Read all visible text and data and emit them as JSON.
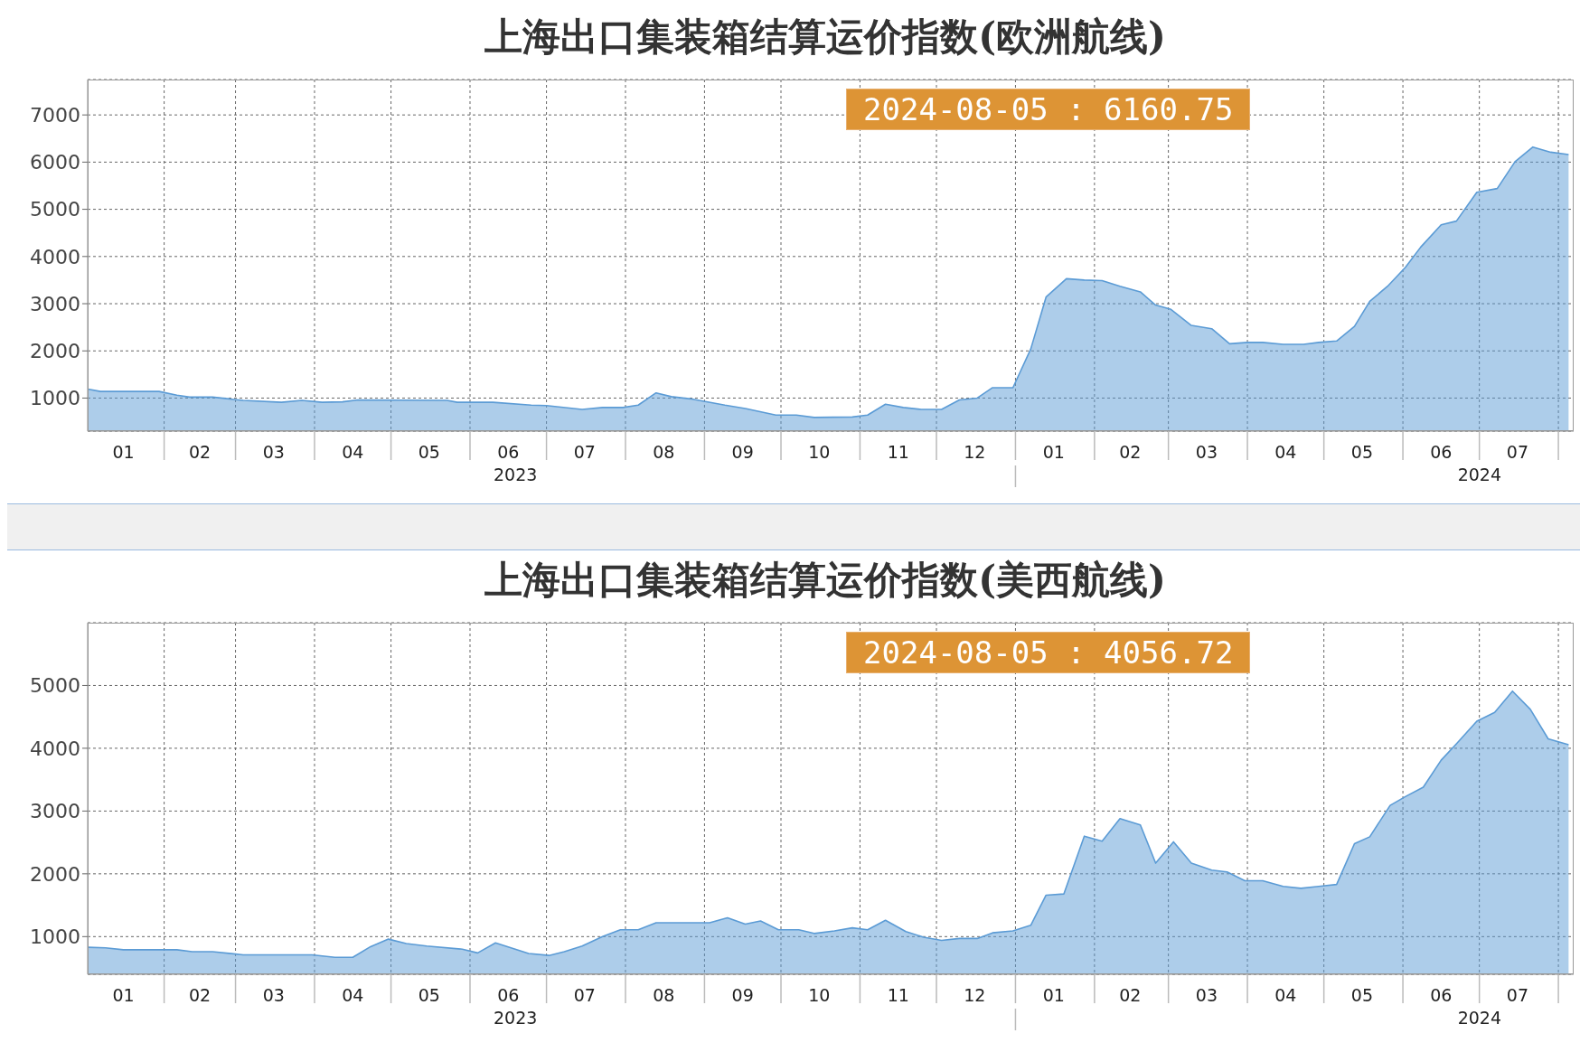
{
  "chart_data": [
    {
      "type": "area",
      "title": "上海出口集装箱结算运价指数(欧洲航线)",
      "color": "#5b9bd5",
      "grid": true,
      "xlim": [
        "2023-01-02",
        "2024-08-07"
      ],
      "ylim": [
        300,
        7750
      ],
      "yticks": [
        1000,
        2000,
        3000,
        4000,
        5000,
        6000,
        7000
      ],
      "xticks": [
        {
          "value": "2023-01-16",
          "label": "01"
        },
        {
          "value": "2023-02-01",
          "label": null
        },
        {
          "value": "2023-02-15",
          "label": "02"
        },
        {
          "value": "2023-03-01",
          "label": null
        },
        {
          "value": "2023-03-16",
          "label": "03"
        },
        {
          "value": "2023-04-01",
          "label": null
        },
        {
          "value": "2023-04-16",
          "label": "04"
        },
        {
          "value": "2023-05-01",
          "label": null
        },
        {
          "value": "2023-05-16",
          "label": "05"
        },
        {
          "value": "2023-06-01",
          "label": null
        },
        {
          "value": "2023-06-16",
          "label": "06"
        },
        {
          "value": "2023-07-01",
          "label": null
        },
        {
          "value": "2023-07-16",
          "label": "07"
        },
        {
          "value": "2023-08-01",
          "label": null
        },
        {
          "value": "2023-08-16",
          "label": "08"
        },
        {
          "value": "2023-09-01",
          "label": null
        },
        {
          "value": "2023-09-16",
          "label": "09"
        },
        {
          "value": "2023-10-01",
          "label": null
        },
        {
          "value": "2023-10-16",
          "label": "10"
        },
        {
          "value": "2023-11-01",
          "label": null
        },
        {
          "value": "2023-11-16",
          "label": "11"
        },
        {
          "value": "2023-12-01",
          "label": null
        },
        {
          "value": "2023-12-16",
          "label": "12"
        },
        {
          "value": "2024-01-01",
          "label": null
        },
        {
          "value": "2024-01-16",
          "label": "01"
        },
        {
          "value": "2024-02-01",
          "label": null
        },
        {
          "value": "2024-02-15",
          "label": "02"
        },
        {
          "value": "2024-03-01",
          "label": null
        },
        {
          "value": "2024-03-16",
          "label": "03"
        },
        {
          "value": "2024-04-01",
          "label": null
        },
        {
          "value": "2024-04-16",
          "label": "04"
        },
        {
          "value": "2024-05-01",
          "label": null
        },
        {
          "value": "2024-05-16",
          "label": "05"
        },
        {
          "value": "2024-06-01",
          "label": null
        },
        {
          "value": "2024-06-16",
          "label": "06"
        },
        {
          "value": "2024-07-01",
          "label": null
        },
        {
          "value": "2024-07-16",
          "label": "07"
        },
        {
          "value": "2024-08-01",
          "label": null
        }
      ],
      "annotations": [
        "2024-08-05 : 6160.75",
        "2023",
        "2024"
      ],
      "x": [
        "2023-01-02",
        "2023-01-07",
        "2023-01-30",
        "2023-02-06",
        "2023-02-11",
        "2023-02-20",
        "2023-03-04",
        "2023-03-19",
        "2023-03-27",
        "2023-04-04",
        "2023-04-12",
        "2023-04-18",
        "2023-05-23",
        "2023-05-27",
        "2023-06-10",
        "2023-06-25",
        "2023-07-01",
        "2023-07-15",
        "2023-07-23",
        "2023-07-31",
        "2023-08-06",
        "2023-08-13",
        "2023-08-19",
        "2023-08-27",
        "2023-09-09",
        "2023-09-17",
        "2023-09-29",
        "2023-10-07",
        "2023-10-14",
        "2023-10-29",
        "2023-11-04",
        "2023-11-11",
        "2023-11-18",
        "2023-11-25",
        "2023-12-03",
        "2023-12-10",
        "2023-12-17",
        "2023-12-23",
        "2023-12-31",
        "2024-01-07",
        "2024-01-13",
        "2024-01-21",
        "2024-01-28",
        "2024-02-04",
        "2024-02-11",
        "2024-02-19",
        "2024-02-25",
        "2024-03-02",
        "2024-03-10",
        "2024-03-18",
        "2024-03-25",
        "2024-04-01",
        "2024-04-07",
        "2024-04-15",
        "2024-04-23",
        "2024-04-29",
        "2024-05-06",
        "2024-05-13",
        "2024-05-19",
        "2024-05-26",
        "2024-06-02",
        "2024-06-08",
        "2024-06-16",
        "2024-06-22",
        "2024-06-30",
        "2024-07-08",
        "2024-07-15",
        "2024-07-22",
        "2024-07-29",
        "2024-08-05"
      ],
      "values": [
        1190,
        1140,
        1140,
        1060,
        1020,
        1020,
        950,
        910,
        950,
        910,
        920,
        960,
        950,
        910,
        910,
        850,
        840,
        760,
        800,
        800,
        850,
        1110,
        1030,
        980,
        850,
        780,
        640,
        640,
        590,
        600,
        640,
        870,
        800,
        760,
        760,
        960,
        1000,
        1220,
        1220,
        2040,
        3140,
        3530,
        3500,
        3490,
        3370,
        3250,
        2970,
        2880,
        2540,
        2470,
        2150,
        2180,
        2180,
        2140,
        2140,
        2180,
        2210,
        2520,
        3050,
        3370,
        3770,
        4200,
        4670,
        4750,
        5360,
        5440,
        6010,
        6320,
        6210,
        6160.75
      ]
    },
    {
      "type": "area",
      "title": "上海出口集装箱结算运价指数(美西航线)",
      "color": "#5b9bd5",
      "grid": true,
      "xlim": [
        "2023-01-02",
        "2024-08-07"
      ],
      "ylim": [
        400,
        6000
      ],
      "yticks": [
        1000,
        2000,
        3000,
        4000,
        5000
      ],
      "xticks": [
        {
          "value": "2023-01-16",
          "label": "01"
        },
        {
          "value": "2023-02-01",
          "label": null
        },
        {
          "value": "2023-02-15",
          "label": "02"
        },
        {
          "value": "2023-03-01",
          "label": null
        },
        {
          "value": "2023-03-16",
          "label": "03"
        },
        {
          "value": "2023-04-01",
          "label": null
        },
        {
          "value": "2023-04-16",
          "label": "04"
        },
        {
          "value": "2023-05-01",
          "label": null
        },
        {
          "value": "2023-05-16",
          "label": "05"
        },
        {
          "value": "2023-06-01",
          "label": null
        },
        {
          "value": "2023-06-16",
          "label": "06"
        },
        {
          "value": "2023-07-01",
          "label": null
        },
        {
          "value": "2023-07-16",
          "label": "07"
        },
        {
          "value": "2023-08-01",
          "label": null
        },
        {
          "value": "2023-08-16",
          "label": "08"
        },
        {
          "value": "2023-09-01",
          "label": null
        },
        {
          "value": "2023-09-16",
          "label": "09"
        },
        {
          "value": "2023-10-01",
          "label": null
        },
        {
          "value": "2023-10-16",
          "label": "10"
        },
        {
          "value": "2023-11-01",
          "label": null
        },
        {
          "value": "2023-11-16",
          "label": "11"
        },
        {
          "value": "2023-12-01",
          "label": null
        },
        {
          "value": "2023-12-16",
          "label": "12"
        },
        {
          "value": "2024-01-01",
          "label": null
        },
        {
          "value": "2024-01-16",
          "label": "01"
        },
        {
          "value": "2024-02-01",
          "label": null
        },
        {
          "value": "2024-02-15",
          "label": "02"
        },
        {
          "value": "2024-03-01",
          "label": null
        },
        {
          "value": "2024-03-16",
          "label": "03"
        },
        {
          "value": "2024-04-01",
          "label": null
        },
        {
          "value": "2024-04-16",
          "label": "04"
        },
        {
          "value": "2024-05-01",
          "label": null
        },
        {
          "value": "2024-05-16",
          "label": "05"
        },
        {
          "value": "2024-06-01",
          "label": null
        },
        {
          "value": "2024-06-16",
          "label": "06"
        },
        {
          "value": "2024-07-01",
          "label": null
        },
        {
          "value": "2024-07-16",
          "label": "07"
        },
        {
          "value": "2024-08-01",
          "label": null
        }
      ],
      "annotations": [
        "2024-08-05 : 4056.72",
        "2023",
        "2024"
      ],
      "x": [
        "2023-01-02",
        "2023-01-09",
        "2023-01-16",
        "2023-02-06",
        "2023-02-12",
        "2023-02-20",
        "2023-03-04",
        "2023-03-31",
        "2023-04-09",
        "2023-04-16",
        "2023-04-23",
        "2023-04-30",
        "2023-05-07",
        "2023-05-15",
        "2023-05-29",
        "2023-06-04",
        "2023-06-11",
        "2023-06-24",
        "2023-07-02",
        "2023-07-08",
        "2023-07-15",
        "2023-07-23",
        "2023-07-30",
        "2023-08-06",
        "2023-08-13",
        "2023-09-03",
        "2023-09-10",
        "2023-09-17",
        "2023-09-23",
        "2023-09-30",
        "2023-10-08",
        "2023-10-14",
        "2023-10-22",
        "2023-10-29",
        "2023-11-04",
        "2023-11-11",
        "2023-11-19",
        "2023-11-26",
        "2023-12-03",
        "2023-12-10",
        "2023-12-17",
        "2023-12-23",
        "2023-12-31",
        "2024-01-07",
        "2024-01-13",
        "2024-01-20",
        "2024-01-28",
        "2024-02-04",
        "2024-02-11",
        "2024-02-19",
        "2024-02-25",
        "2024-03-03",
        "2024-03-10",
        "2024-03-18",
        "2024-03-24",
        "2024-03-31",
        "2024-04-07",
        "2024-04-15",
        "2024-04-22",
        "2024-04-29",
        "2024-05-06",
        "2024-05-13",
        "2024-05-19",
        "2024-05-27",
        "2024-06-02",
        "2024-06-09",
        "2024-06-16",
        "2024-06-22",
        "2024-06-30",
        "2024-07-07",
        "2024-07-14",
        "2024-07-21",
        "2024-07-28",
        "2024-08-05"
      ],
      "values": [
        830,
        820,
        790,
        790,
        760,
        760,
        710,
        710,
        670,
        670,
        840,
        960,
        890,
        850,
        800,
        740,
        900,
        730,
        700,
        760,
        850,
        1000,
        1110,
        1110,
        1220,
        1220,
        1300,
        1200,
        1250,
        1110,
        1110,
        1050,
        1090,
        1140,
        1110,
        1260,
        1080,
        990,
        940,
        970,
        970,
        1060,
        1090,
        1180,
        1660,
        1680,
        2600,
        2520,
        2880,
        2780,
        2170,
        2510,
        2170,
        2060,
        2030,
        1890,
        1890,
        1800,
        1770,
        1800,
        1830,
        2480,
        2590,
        3090,
        3230,
        3380,
        3810,
        4070,
        4430,
        4570,
        4910,
        4620,
        4150,
        4056.72
      ]
    }
  ]
}
